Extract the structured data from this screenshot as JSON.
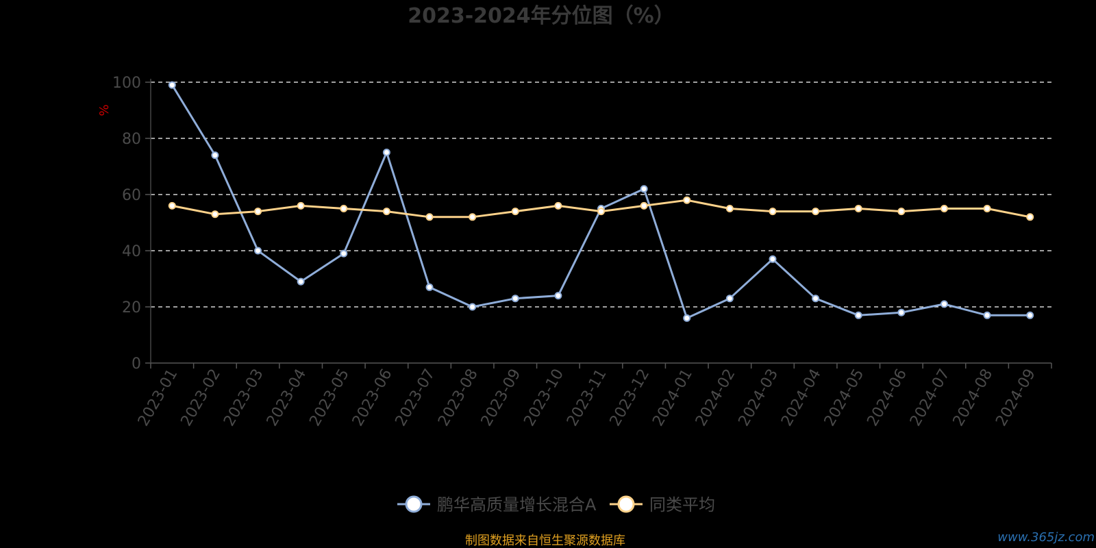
{
  "chart_data": {
    "type": "line",
    "title": "2023-2024年分位图（%）",
    "ylabel": "%",
    "ylim": [
      0,
      100
    ],
    "yticks": [
      0,
      20,
      40,
      60,
      80,
      100
    ],
    "grid": true,
    "legend_position": "bottom-center",
    "categories": [
      "2023-01",
      "2023-02",
      "2023-03",
      "2023-04",
      "2023-05",
      "2023-06",
      "2023-07",
      "2023-08",
      "2023-09",
      "2023-10",
      "2023-11",
      "2023-12",
      "2024-01",
      "2024-02",
      "2024-03",
      "2024-04",
      "2024-05",
      "2024-06",
      "2024-07",
      "2024-08",
      "2024-09"
    ],
    "series": [
      {
        "name": "鹏华高质量增长混合A",
        "color": "#8fadd9",
        "values": [
          99,
          74,
          40,
          29,
          39,
          75,
          27,
          20,
          23,
          24,
          55,
          62,
          16,
          23,
          37,
          23,
          17,
          18,
          21,
          17,
          17
        ]
      },
      {
        "name": "同类平均",
        "color": "#fdd28a",
        "values": [
          56,
          53,
          54,
          56,
          55,
          54,
          52,
          52,
          54,
          56,
          54,
          56,
          58,
          55,
          54,
          54,
          55,
          54,
          55,
          55,
          52
        ]
      }
    ]
  },
  "footer": {
    "source": "制图数据来自恒生聚源数据库",
    "watermark": "www.365jz.com"
  }
}
